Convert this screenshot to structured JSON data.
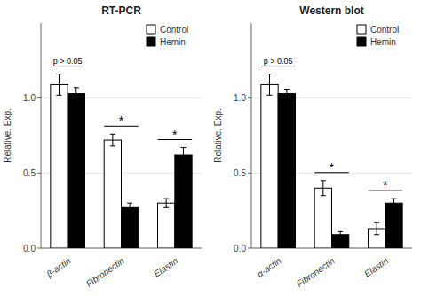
{
  "chart_data": [
    {
      "type": "bar",
      "title": "RT-PCR",
      "categories": [
        "β-actin",
        "Fibronectin",
        "Elastin"
      ],
      "series": [
        {
          "name": "Control",
          "color": "#ffffff",
          "values": [
            1.09,
            0.72,
            0.3
          ],
          "errors": [
            0.07,
            0.04,
            0.03
          ]
        },
        {
          "name": "Hemin",
          "color": "#000000",
          "values": [
            1.03,
            0.27,
            0.62
          ],
          "errors": [
            0.04,
            0.03,
            0.05
          ]
        }
      ],
      "ylabel": "Relative. Exp.",
      "ylim": [
        0,
        1.5
      ],
      "yticks": [
        {
          "value": 0.0,
          "label": "0.0"
        },
        {
          "value": 0.5,
          "label": "0.5"
        },
        {
          "value": 1.0,
          "label": "1.0"
        }
      ],
      "legend": "upper right",
      "annotations": [
        "p > 0.05",
        "*",
        "*"
      ]
    },
    {
      "type": "bar",
      "title": "Western blot",
      "categories": [
        "α-actin",
        "Fibronectin",
        "Elastin"
      ],
      "series": [
        {
          "name": "Control",
          "color": "#ffffff",
          "values": [
            1.09,
            0.4,
            0.13
          ],
          "errors": [
            0.07,
            0.05,
            0.04
          ]
        },
        {
          "name": "Hemin",
          "color": "#000000",
          "values": [
            1.03,
            0.09,
            0.3
          ],
          "errors": [
            0.03,
            0.02,
            0.03
          ]
        }
      ],
      "ylabel": "Relative. Exp.",
      "ylim": [
        0,
        1.5
      ],
      "yticks": [
        {
          "value": 0.0,
          "label": "0.0"
        },
        {
          "value": 0.5,
          "label": "0.5"
        },
        {
          "value": 1.0,
          "label": "1.0"
        }
      ],
      "legend": "upper right",
      "annotations": [
        "p > 0.05",
        "*",
        "*"
      ]
    }
  ]
}
